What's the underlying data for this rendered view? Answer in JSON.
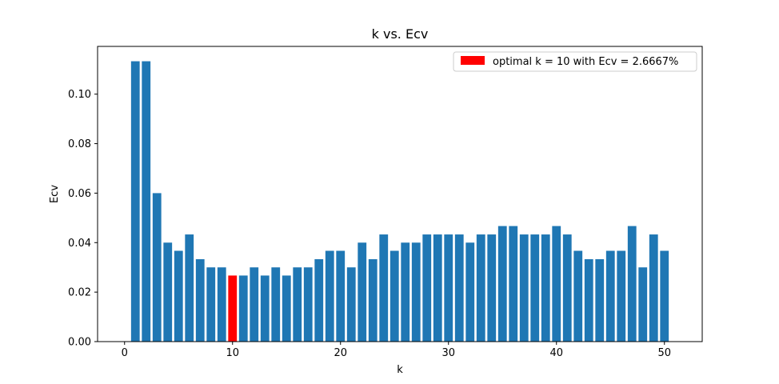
{
  "chart_data": {
    "type": "bar",
    "title": "k vs. Ecv",
    "xlabel": "k",
    "ylabel": "Ecv",
    "xlim": [
      -2.5,
      53.5
    ],
    "ylim": [
      0,
      0.1193
    ],
    "xticks": [
      0,
      10,
      20,
      30,
      40,
      50
    ],
    "xtick_labels": [
      "0",
      "10",
      "20",
      "30",
      "40",
      "50"
    ],
    "yticks": [
      0.0,
      0.02,
      0.04,
      0.06,
      0.08,
      0.1
    ],
    "ytick_labels": [
      "0.00",
      "0.02",
      "0.04",
      "0.06",
      "0.08",
      "0.10"
    ],
    "grid": false,
    "legend_position": "top-right",
    "x": [
      1,
      2,
      3,
      4,
      5,
      6,
      7,
      8,
      9,
      10,
      11,
      12,
      13,
      14,
      15,
      16,
      17,
      18,
      19,
      20,
      21,
      22,
      23,
      24,
      25,
      26,
      27,
      28,
      29,
      30,
      31,
      32,
      33,
      34,
      35,
      36,
      37,
      38,
      39,
      40,
      41,
      42,
      43,
      44,
      45,
      46,
      47,
      48,
      49,
      50
    ],
    "values": [
      0.1133,
      0.1133,
      0.06,
      0.04,
      0.0367,
      0.0433,
      0.0333,
      0.03,
      0.03,
      0.0267,
      0.0267,
      0.03,
      0.0267,
      0.03,
      0.0267,
      0.03,
      0.03,
      0.0333,
      0.0367,
      0.0367,
      0.03,
      0.04,
      0.0333,
      0.0433,
      0.0367,
      0.04,
      0.04,
      0.0433,
      0.0433,
      0.0433,
      0.0433,
      0.04,
      0.0433,
      0.0433,
      0.0467,
      0.0467,
      0.0433,
      0.0433,
      0.0433,
      0.0467,
      0.0433,
      0.0367,
      0.0333,
      0.0333,
      0.0367,
      0.0367,
      0.0467,
      0.03,
      0.0433,
      0.0367
    ],
    "highlight": {
      "k": 10,
      "label": "optimal k = 10 with Ecv = 2.6667%"
    },
    "colors": {
      "bar": "#1f77b4",
      "highlight": "#ff0000"
    }
  }
}
